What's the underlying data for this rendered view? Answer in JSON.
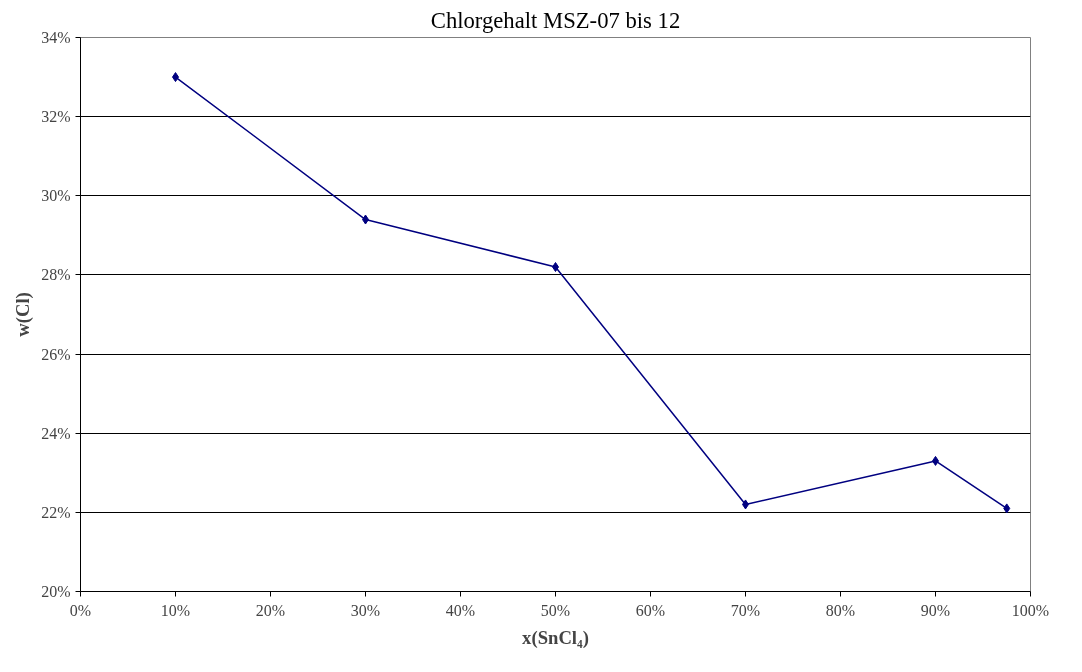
{
  "chart_data": {
    "type": "line",
    "title": "Chlorgehalt MSZ-07 bis 12",
    "xlabel": "x(SnCl₄)",
    "ylabel": "w(Cl)",
    "x": [
      10,
      30,
      50,
      70,
      90,
      97.5
    ],
    "series": [
      {
        "color": "#000080",
        "values": [
          33.0,
          29.4,
          28.2,
          22.2,
          23.3,
          22.1
        ]
      }
    ],
    "xlim": [
      0,
      100
    ],
    "ylim": [
      20,
      34
    ],
    "xticks": [
      {
        "value": 0,
        "label": "0%"
      },
      {
        "value": 10,
        "label": "10%"
      },
      {
        "value": 20,
        "label": "20%"
      },
      {
        "value": 30,
        "label": "30%"
      },
      {
        "value": 40,
        "label": "40%"
      },
      {
        "value": 50,
        "label": "50%"
      },
      {
        "value": 60,
        "label": "60%"
      },
      {
        "value": 70,
        "label": "70%"
      },
      {
        "value": 80,
        "label": "80%"
      },
      {
        "value": 90,
        "label": "90%"
      },
      {
        "value": 100,
        "label": "100%"
      }
    ],
    "yticks": [
      {
        "value": 20,
        "label": "20%"
      },
      {
        "value": 22,
        "label": "22%"
      },
      {
        "value": 24,
        "label": "24%"
      },
      {
        "value": 26,
        "label": "26%"
      },
      {
        "value": 28,
        "label": "28%"
      },
      {
        "value": 30,
        "label": "30%"
      },
      {
        "value": 32,
        "label": "32%"
      },
      {
        "value": 34,
        "label": "34%"
      }
    ],
    "grid": "y",
    "marker": "diamond",
    "line_style": "solid"
  }
}
